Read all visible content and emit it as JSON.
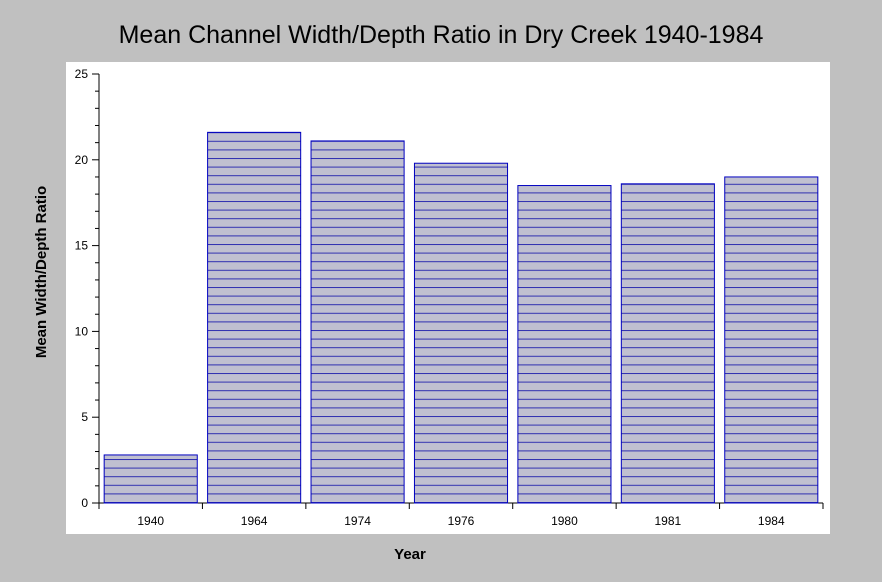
{
  "chart_data": {
    "type": "bar",
    "title": "Mean Channel Width/Depth Ratio in Dry Creek 1940-1984",
    "xlabel": "Year",
    "ylabel": "Mean Width/Depth Ratio",
    "categories": [
      "1940",
      "1964",
      "1974",
      "1976",
      "1980",
      "1981",
      "1984"
    ],
    "values": [
      2.8,
      21.6,
      21.1,
      19.8,
      18.5,
      18.6,
      19.0
    ],
    "ylim": [
      0,
      25
    ],
    "yticks": [
      "0",
      "5",
      "10",
      "15",
      "20",
      "25"
    ],
    "grid": false,
    "legend": "none",
    "colors": {
      "background": "#c0c0c0",
      "plot_area": "#ffffff",
      "bar_fill": "#c0c0d0",
      "bar_stroke": "#0000c0",
      "bar_hatch": "#3030b0"
    }
  }
}
